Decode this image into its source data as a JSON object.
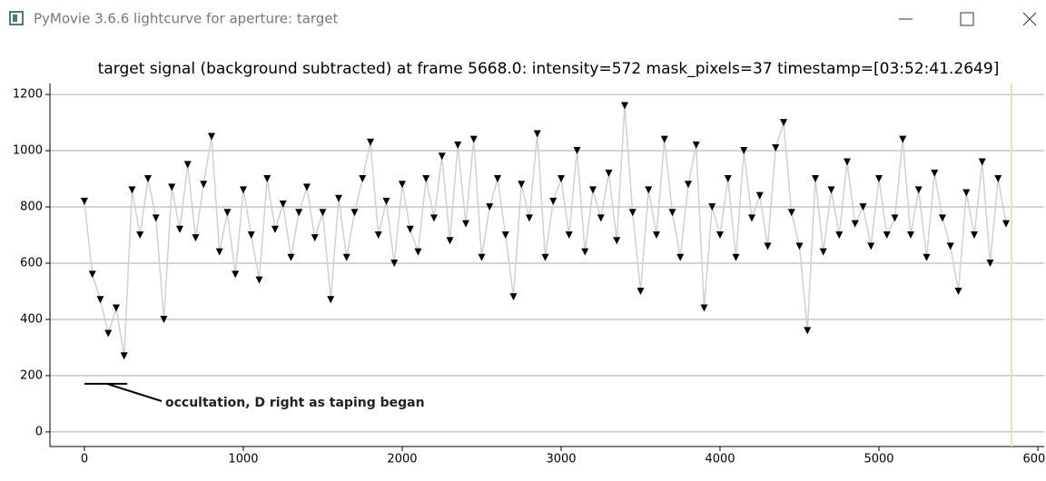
{
  "window": {
    "title": "PyMovie 3.6.6 lightcurve for aperture: target"
  },
  "chart_data": {
    "type": "line",
    "title": "target signal (background subtracted) at frame 5668.0: intensity=572 mask_pixels=37 timestamp=[03:52:41.2649]",
    "x": [
      0,
      50,
      100,
      150,
      200,
      250,
      300,
      350,
      400,
      450,
      500,
      550,
      600,
      650,
      700,
      750,
      800,
      850,
      900,
      950,
      1000,
      1050,
      1100,
      1150,
      1200,
      1250,
      1300,
      1350,
      1400,
      1450,
      1500,
      1550,
      1600,
      1650,
      1700,
      1750,
      1800,
      1850,
      1900,
      1950,
      2000,
      2050,
      2100,
      2150,
      2200,
      2250,
      2300,
      2350,
      2400,
      2450,
      2500,
      2550,
      2600,
      2650,
      2700,
      2750,
      2800,
      2850,
      2900,
      2950,
      3000,
      3050,
      3100,
      3150,
      3200,
      3250,
      3300,
      3350,
      3400,
      3450,
      3500,
      3550,
      3600,
      3650,
      3700,
      3750,
      3800,
      3850,
      3900,
      3950,
      4000,
      4050,
      4100,
      4150,
      4200,
      4250,
      4300,
      4350,
      4400,
      4450,
      4500,
      4550,
      4600,
      4650,
      4700,
      4750,
      4800,
      4850,
      4900,
      4950,
      5000,
      5050,
      5100,
      5150,
      5200,
      5250,
      5300,
      5350,
      5400,
      5450,
      5500,
      5550,
      5600,
      5650,
      5700,
      5750,
      5800
    ],
    "series": [
      {
        "name": "target",
        "color": "#000000",
        "line_color": "#d0d0d0",
        "values": [
          820,
          560,
          470,
          350,
          440,
          270,
          860,
          700,
          900,
          760,
          400,
          870,
          720,
          950,
          690,
          880,
          1050,
          640,
          780,
          560,
          860,
          700,
          540,
          900,
          720,
          810,
          620,
          780,
          870,
          690,
          780,
          470,
          830,
          620,
          780,
          900,
          1030,
          700,
          820,
          600,
          880,
          720,
          640,
          900,
          760,
          980,
          680,
          1020,
          740,
          1040,
          620,
          800,
          900,
          700,
          480,
          880,
          760,
          1060,
          620,
          820,
          900,
          700,
          1000,
          640,
          860,
          760,
          920,
          680,
          1160,
          780,
          500,
          860,
          700,
          1040,
          780,
          620,
          880,
          1020,
          440,
          800,
          700,
          900,
          620,
          1000,
          760,
          840,
          660,
          1010,
          1100,
          780,
          660,
          360,
          900,
          640,
          860,
          700,
          960,
          740,
          800,
          660,
          900,
          700,
          760,
          1040,
          700,
          860,
          620,
          920,
          760,
          660,
          500,
          850,
          700,
          960,
          600,
          900,
          740
        ]
      }
    ],
    "xlim": [
      -217,
      6040
    ],
    "ylim": [
      -52,
      1239
    ],
    "xticks": [
      0,
      1000,
      2000,
      3000,
      4000,
      5000,
      6000
    ],
    "yticks": [
      0,
      200,
      400,
      600,
      800,
      1000,
      1200
    ],
    "grid": true,
    "cursor_x": 5834,
    "cursor_color": "#e6e6a8",
    "annotation": {
      "text": "occultation, D right as taping began",
      "y": 171,
      "x": [
        0,
        270
      ]
    }
  }
}
